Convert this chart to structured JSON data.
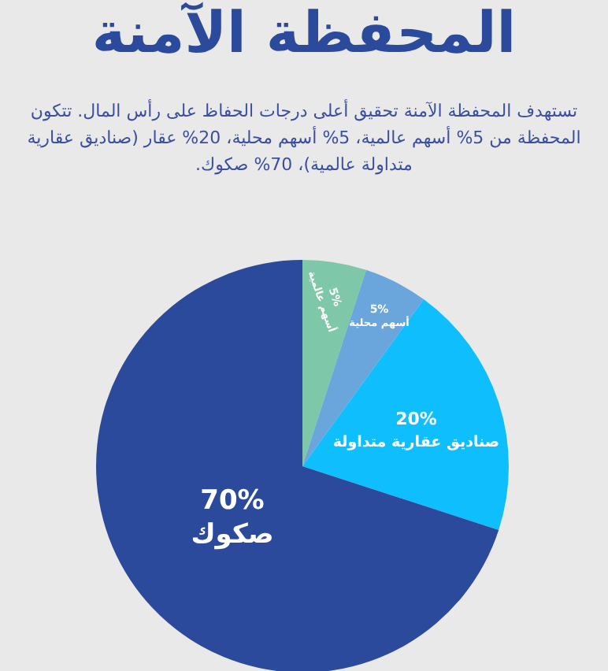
{
  "chart_data": {
    "type": "pie",
    "title": "المحفظة الآمنة",
    "subtitle": "تستهدف المحفظة الآمنة تحقيق أعلى درجات الحفاظ على رأس المال. تتكون المحفظة من 5% أسهم عالمية، 5% أسهم محلية، 20% عقار (صناديق عقارية متداولة عالمية)، 70% صكوك.",
    "categories": [
      "أسهم عالمية",
      "أسهم محلية",
      "صناديق عقارية متداولة",
      "صكوك"
    ],
    "values": [
      5,
      5,
      20,
      70
    ],
    "value_labels": [
      "5%",
      "5%",
      "20%",
      "70%"
    ],
    "colors": [
      "#7fc7a9",
      "#6aa6dc",
      "#0fbefc",
      "#2b4a9b"
    ],
    "legend": false
  }
}
